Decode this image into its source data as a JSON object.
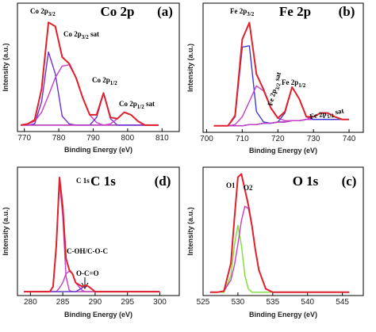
{
  "chart_data": [
    {
      "type": "line",
      "title": "Co 2p",
      "panel_label": "(a)",
      "x_label": "Binding Energy (eV)",
      "y_label": "Intensity (a.u.)",
      "xlim": [
        768,
        815
      ],
      "xticks": [
        770,
        780,
        790,
        800,
        810
      ],
      "ylim": [
        0,
        100
      ],
      "x": [
        769,
        771,
        773,
        775,
        777,
        779,
        781,
        783,
        785,
        787,
        789,
        791,
        793,
        795,
        797,
        799,
        801,
        803,
        805,
        807,
        809
      ],
      "series": [
        {
          "color": "#7ddc3a",
          "values": [
            5,
            5,
            5,
            5,
            5,
            5,
            5,
            5,
            5,
            5,
            5,
            5,
            5,
            5,
            5,
            5,
            5,
            5,
            5,
            5,
            5
          ]
        },
        {
          "color": "#6a30d8",
          "values": [
            5,
            5,
            6,
            23,
            62,
            45,
            12,
            6,
            5,
            5,
            5,
            5,
            5,
            5,
            5,
            5,
            5,
            5,
            5,
            5,
            5
          ]
        },
        {
          "color": "#c83cc8",
          "values": [
            5,
            6,
            8,
            15,
            28,
            42,
            51,
            52,
            42,
            26,
            13,
            7,
            5,
            5,
            5,
            5,
            5,
            5,
            5,
            5,
            5
          ]
        },
        {
          "color": "#6a30d8",
          "values": [
            5,
            5,
            5,
            5,
            5,
            5,
            5,
            5,
            5,
            5,
            5,
            11,
            30,
            10,
            5,
            5,
            5,
            5,
            5,
            5,
            5
          ]
        },
        {
          "color": "#c83cc8",
          "values": [
            5,
            5,
            5,
            5,
            5,
            5,
            5,
            5,
            5,
            5,
            5,
            5,
            5,
            6,
            10,
            15,
            13,
            8,
            5,
            5,
            5
          ]
        },
        {
          "color": "#e0202a",
          "values": [
            5,
            6,
            9,
            33,
            85,
            82,
            58,
            53,
            42,
            26,
            13,
            13,
            30,
            11,
            10,
            15,
            13,
            8,
            5,
            5,
            5
          ]
        }
      ],
      "annotations": [
        {
          "text": "Co 2p",
          "sub": "3/2"
        },
        {
          "text": "Co 2p",
          "sub": "3/2",
          "suffix": " sat"
        },
        {
          "text": "Co 2p",
          "sub": "1/2"
        },
        {
          "text": "Co 2p",
          "sub": "1/2",
          "suffix": " sat"
        }
      ]
    },
    {
      "type": "line",
      "title": "Fe 2p",
      "panel_label": "(b)",
      "x_label": "Binding Energy (eV)",
      "y_label": "Intensity (a.u.)",
      "xlim": [
        699,
        744
      ],
      "xticks": [
        700,
        710,
        720,
        730,
        740
      ],
      "ylim": [
        0,
        100
      ],
      "x": [
        702,
        704,
        706,
        708,
        710,
        712,
        714,
        716,
        718,
        720,
        722,
        724,
        726,
        728,
        730,
        732,
        734,
        736,
        738,
        740
      ],
      "series": [
        {
          "color": "#7ddc3a",
          "values": [
            5,
            5,
            5,
            5,
            5,
            6,
            6,
            7,
            7,
            8,
            8,
            9,
            9,
            10,
            10,
            10,
            10,
            10,
            10,
            10
          ]
        },
        {
          "color": "#3a3ad8",
          "values": [
            5,
            5,
            5,
            12,
            66,
            67,
            16,
            8,
            7,
            8,
            8,
            9,
            9,
            10,
            10,
            10,
            10,
            10,
            10,
            10
          ]
        },
        {
          "color": "#c83cc8",
          "values": [
            5,
            5,
            5,
            6,
            12,
            24,
            36,
            32,
            19,
            11,
            9,
            9,
            9,
            10,
            10,
            10,
            10,
            10,
            10,
            10
          ]
        },
        {
          "color": "#3a3ad8",
          "values": [
            5,
            5,
            5,
            5,
            5,
            6,
            6,
            7,
            7,
            8,
            15,
            35,
            26,
            12,
            10,
            10,
            10,
            10,
            10,
            10
          ]
        },
        {
          "color": "#c83cc8",
          "values": [
            5,
            5,
            5,
            5,
            5,
            6,
            6,
            7,
            7,
            8,
            8,
            9,
            9,
            10,
            12,
            15,
            15,
            12,
            10,
            10
          ]
        },
        {
          "color": "#e0202a",
          "values": [
            5,
            5,
            5,
            13,
            72,
            85,
            45,
            33,
            19,
            11,
            16,
            35,
            26,
            12,
            12,
            15,
            15,
            12,
            10,
            10
          ]
        }
      ],
      "annotations": [
        {
          "text": "Fe 2p",
          "sub": "3/2"
        },
        {
          "text": "Fe 2p",
          "sub": "3/2",
          "suffix": " sat"
        },
        {
          "text": "Fe 2p",
          "sub": "1/2"
        },
        {
          "text": "Fe 2p",
          "sub": "1/2",
          "suffix": " sat"
        }
      ]
    },
    {
      "type": "line",
      "title": "C 1s",
      "panel_label": "(d)",
      "x_label": "Binding Energy (eV)",
      "y_label": "Intensity (a.u.)",
      "xlim": [
        278,
        303
      ],
      "xticks": [
        280,
        285,
        290,
        295,
        300
      ],
      "ylim": [
        0,
        100
      ],
      "x": [
        279,
        281,
        282,
        283,
        283.5,
        284,
        284.5,
        285,
        285.5,
        286,
        286.5,
        287,
        288,
        288.5,
        289,
        290,
        292,
        295,
        300
      ],
      "series": [
        {
          "color": "#7ddc3a",
          "values": [
            3,
            3,
            3,
            3,
            3,
            3,
            3,
            3,
            3,
            3,
            3,
            3,
            3,
            3,
            3,
            3,
            3,
            3,
            3
          ]
        },
        {
          "color": "#c83cc8",
          "values": [
            3,
            3,
            3,
            3,
            7,
            39,
            89,
            62,
            15,
            4,
            3,
            3,
            3,
            3,
            3,
            3,
            3,
            3,
            3
          ]
        },
        {
          "color": "#c83cc8",
          "values": [
            3,
            3,
            3,
            3,
            3,
            3,
            6,
            10,
            17,
            19,
            17,
            10,
            4,
            3,
            3,
            3,
            3,
            3,
            3
          ]
        },
        {
          "color": "#6a30d8",
          "values": [
            3,
            3,
            3,
            3,
            3,
            3,
            3,
            3,
            3,
            3,
            3,
            3,
            6,
            8,
            7,
            3,
            3,
            3,
            3
          ]
        },
        {
          "color": "#e0202a",
          "values": [
            3,
            3,
            3,
            3,
            7,
            39,
            92,
            69,
            29,
            20,
            17,
            10,
            7,
            8,
            7,
            3,
            3,
            3,
            3
          ]
        }
      ],
      "annotations": [
        {
          "text": "C 1s"
        },
        {
          "text": "C-OH/C-O-C"
        },
        {
          "text": "O-C=O"
        }
      ]
    },
    {
      "type": "line",
      "title": "O 1s",
      "panel_label": "(c)",
      "x_label": "Binding Energy (eV)",
      "y_label": "Intensity (a.u.)",
      "xlim": [
        525,
        548
      ],
      "xticks": [
        525,
        530,
        535,
        540,
        545
      ],
      "ylim": [
        0,
        115
      ],
      "x": [
        526,
        527,
        528,
        529,
        529.5,
        530,
        530.5,
        531,
        531.5,
        532,
        532.5,
        533,
        534,
        535,
        536,
        538,
        540,
        543,
        546
      ],
      "series": [
        {
          "color": "#7ddc3a",
          "values": [
            3,
            3,
            3,
            18,
            45,
            63,
            45,
            18,
            6,
            3,
            3,
            3,
            3,
            3,
            3,
            3,
            3,
            3,
            3
          ]
        },
        {
          "color": "#c83cc8",
          "values": [
            3,
            3,
            4,
            14,
            27,
            46,
            67,
            80,
            78,
            63,
            41,
            23,
            6,
            3,
            3,
            3,
            3,
            3,
            3
          ]
        },
        {
          "color": "#e0202a",
          "values": [
            3,
            3,
            4,
            29,
            69,
            106,
            109,
            95,
            81,
            63,
            41,
            23,
            6,
            3,
            3,
            3,
            3,
            3,
            3
          ]
        }
      ],
      "annotations": [
        {
          "text": "O1"
        },
        {
          "text": "O2"
        }
      ]
    }
  ]
}
